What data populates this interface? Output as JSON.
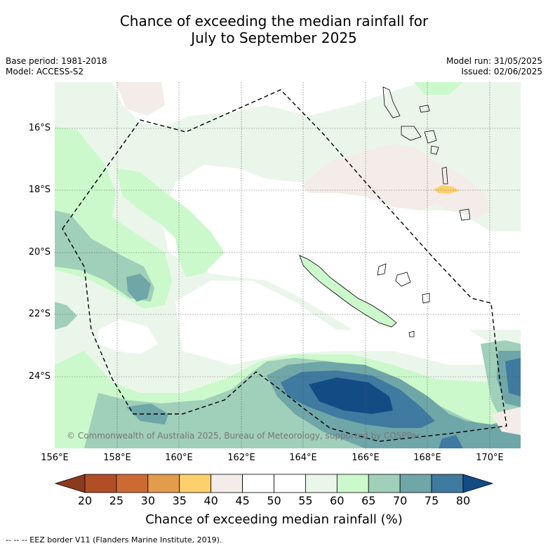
{
  "title_line1": "Chance of exceeding the median rainfall for",
  "title_line2": "July to September 2025",
  "meta": {
    "base_period": "Base period: 1981-2018",
    "model": "Model: ACCESS-S2",
    "model_run": "Model run: 31/05/2025",
    "issued": "Issued: 02/06/2025"
  },
  "axes": {
    "lon_labels": [
      "156°E",
      "158°E",
      "160°E",
      "162°E",
      "164°E",
      "166°E",
      "168°E",
      "170°E"
    ],
    "lat_labels": [
      "16°S",
      "18°S",
      "20°S",
      "22°S",
      "24°S"
    ]
  },
  "copyright": "© Commonwealth of Australia 2025, Bureau of Meteorology, supported by COSPPac",
  "colorbar": {
    "ticks": [
      "20",
      "25",
      "30",
      "35",
      "40",
      "45",
      "50",
      "55",
      "60",
      "65",
      "70",
      "75",
      "80"
    ],
    "colors": [
      "#8c3a1f",
      "#b14e26",
      "#cd6a34",
      "#e39b4c",
      "#fdd06c",
      "#f3ece9",
      "#ffffff",
      "#ffffff",
      "#ebf6eb",
      "#cbf9cb",
      "#a0cfba",
      "#6fa6a8",
      "#3f7aa0",
      "#134b85"
    ],
    "label": "Chance of exceeding median rainfall (%)"
  },
  "legend_footer": "--  --  -- EEZ border V11 (Flanders Marine Institute, 2019)."
}
